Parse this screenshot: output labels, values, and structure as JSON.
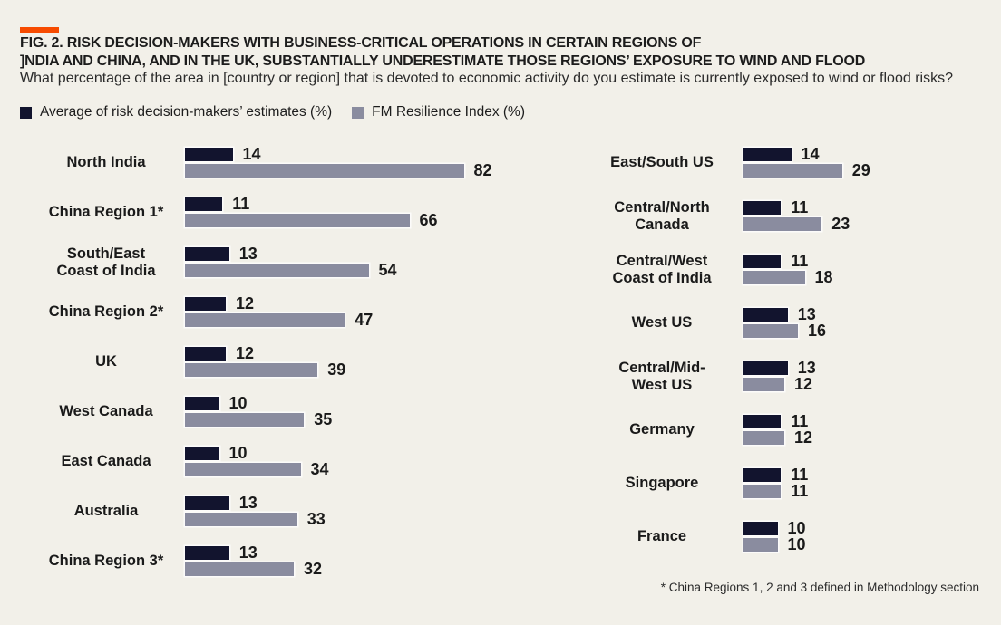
{
  "header": {
    "title_line1": "FIG. 2. RISK DECISION-MAKERS WITH BUSINESS-CRITICAL OPERATIONS IN CERTAIN REGIONS OF",
    "title_line2": "]NDIA AND CHINA, AND IN THE UK, SUBSTANTIALLY UNDERESTIMATE THOSE REGIONS’ EXPOSURE TO WIND AND FLOOD",
    "question": "What percentage of the area in [country or region] that is devoted to economic activity do you estimate is currently exposed to wind or flood risks?"
  },
  "legend": {
    "estimates": "Average of risk decision-makers’ estimates (%)",
    "index": "FM Resilience Index (%)"
  },
  "colors": {
    "estimate_bar": "#12142E",
    "index_bar": "#8A8C9F",
    "accent": "#F74B00",
    "background": "#F2F0E9",
    "text": "#1C1C1C"
  },
  "footnote": "* China Regions 1, 2 and 3 defined in Methodology section",
  "chart_data": {
    "type": "bar",
    "orientation": "horizontal",
    "unit": "%",
    "title": "FIG. 2. RISK DECISION-MAKERS WITH BUSINESS-CRITICAL OPERATIONS IN CERTAIN REGIONS OF ]NDIA AND CHINA, AND IN THE UK, SUBSTANTIALLY UNDERESTIMATE THOSE REGIONS’ EXPOSURE TO WIND AND FLOOD",
    "series_names": [
      "Average of risk decision-makers’ estimates (%)",
      "FM Resilience Index (%)"
    ],
    "legend_position": "top",
    "grid": false,
    "value_range": [
      0,
      82
    ],
    "columns": [
      {
        "rows": [
          {
            "label": "North India",
            "estimate": 14,
            "index": 82
          },
          {
            "label": "China Region 1*",
            "estimate": 11,
            "index": 66
          },
          {
            "label": "South/East\nCoast of India",
            "estimate": 13,
            "index": 54
          },
          {
            "label": "China Region 2*",
            "estimate": 12,
            "index": 47
          },
          {
            "label": "UK",
            "estimate": 12,
            "index": 39
          },
          {
            "label": "West Canada",
            "estimate": 10,
            "index": 35
          },
          {
            "label": "East Canada",
            "estimate": 10,
            "index": 34
          },
          {
            "label": "Australia",
            "estimate": 13,
            "index": 33
          },
          {
            "label": "China Region 3*",
            "estimate": 13,
            "index": 32
          }
        ]
      },
      {
        "rows": [
          {
            "label": "East/South US",
            "estimate": 14,
            "index": 29
          },
          {
            "label": "Central/North\nCanada",
            "estimate": 11,
            "index": 23
          },
          {
            "label": "Central/West\nCoast of India",
            "estimate": 11,
            "index": 18
          },
          {
            "label": "West US",
            "estimate": 13,
            "index": 16
          },
          {
            "label": "Central/Mid-\nWest US",
            "estimate": 13,
            "index": 12
          },
          {
            "label": "Germany",
            "estimate": 11,
            "index": 12
          },
          {
            "label": "Singapore",
            "estimate": 11,
            "index": 11
          },
          {
            "label": "France",
            "estimate": 10,
            "index": 10
          }
        ]
      }
    ]
  }
}
